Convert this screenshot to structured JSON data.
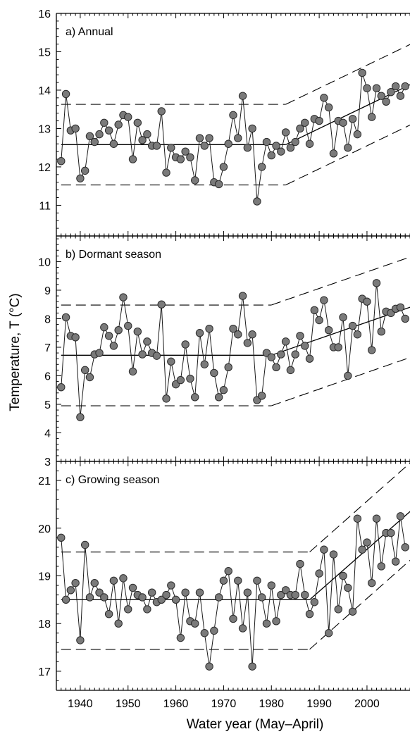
{
  "chart_data": {
    "type": "scatter",
    "xlabel": "Water year (May–April)",
    "ylabel": "Temperature, T (°C)",
    "xlim": [
      1935,
      2009
    ],
    "x_ticks": [
      1940,
      1950,
      1960,
      1970,
      1980,
      1990,
      2000
    ],
    "grid": false,
    "panels": [
      {
        "label": "a) Annual",
        "ylim": [
          10.2,
          16
        ],
        "y_ticks": [
          11,
          12,
          13,
          14,
          15,
          16
        ],
        "x": [
          1936,
          1937,
          1938,
          1939,
          1940,
          1941,
          1942,
          1943,
          1944,
          1945,
          1946,
          1947,
          1948,
          1949,
          1950,
          1951,
          1952,
          1953,
          1954,
          1955,
          1956,
          1957,
          1958,
          1959,
          1960,
          1961,
          1962,
          1963,
          1964,
          1965,
          1966,
          1967,
          1968,
          1969,
          1970,
          1971,
          1972,
          1973,
          1974,
          1975,
          1976,
          1977,
          1978,
          1979,
          1980,
          1981,
          1982,
          1983,
          1984,
          1985,
          1986,
          1987,
          1988,
          1989,
          1990,
          1991,
          1992,
          1993,
          1994,
          1995,
          1996,
          1997,
          1998,
          1999,
          2000,
          2001,
          2002,
          2003,
          2004,
          2005,
          2006,
          2007,
          2008
        ],
        "y": [
          12.15,
          13.9,
          12.95,
          13.0,
          11.7,
          11.9,
          12.8,
          12.65,
          12.85,
          13.15,
          12.95,
          12.6,
          13.1,
          13.35,
          13.3,
          12.2,
          13.15,
          12.7,
          12.85,
          12.55,
          12.55,
          13.45,
          11.85,
          12.5,
          12.25,
          12.2,
          12.4,
          12.25,
          11.65,
          12.75,
          12.55,
          12.75,
          11.6,
          11.55,
          12.0,
          12.6,
          13.35,
          12.75,
          13.85,
          12.5,
          13.0,
          11.1,
          12.0,
          12.65,
          12.3,
          12.55,
          12.4,
          12.9,
          12.5,
          12.65,
          13.0,
          13.15,
          12.6,
          13.25,
          13.2,
          13.8,
          13.55,
          12.35,
          13.2,
          13.15,
          12.5,
          13.25,
          12.85,
          14.45,
          14.05,
          13.3,
          14.05,
          13.85,
          13.7,
          13.95,
          14.1,
          13.85,
          14.1
        ],
        "baseline_mean": 12.58,
        "baseline_band": [
          11.53,
          13.63
        ],
        "trend_start": 1983,
        "trend_from": 12.58,
        "trend_slope": 0.06,
        "band_halfwidth": 1.05
      },
      {
        "label": "b) Dormant season",
        "ylim": [
          3,
          10.9
        ],
        "y_ticks": [
          3,
          4,
          5,
          6,
          7,
          8,
          9,
          10
        ],
        "x": [
          1936,
          1937,
          1938,
          1939,
          1940,
          1941,
          1942,
          1943,
          1944,
          1945,
          1946,
          1947,
          1948,
          1949,
          1950,
          1951,
          1952,
          1953,
          1954,
          1955,
          1956,
          1957,
          1958,
          1959,
          1960,
          1961,
          1962,
          1963,
          1964,
          1965,
          1966,
          1967,
          1968,
          1969,
          1970,
          1971,
          1972,
          1973,
          1974,
          1975,
          1976,
          1977,
          1978,
          1979,
          1980,
          1981,
          1982,
          1983,
          1984,
          1985,
          1986,
          1987,
          1988,
          1989,
          1990,
          1991,
          1992,
          1993,
          1994,
          1995,
          1996,
          1997,
          1998,
          1999,
          2000,
          2001,
          2002,
          2003,
          2004,
          2005,
          2006,
          2007,
          2008
        ],
        "y": [
          5.6,
          8.05,
          7.4,
          7.35,
          4.55,
          6.2,
          5.95,
          6.75,
          6.8,
          7.7,
          7.4,
          7.05,
          7.6,
          8.75,
          7.75,
          6.15,
          7.55,
          6.75,
          7.2,
          6.8,
          6.7,
          8.5,
          5.2,
          6.5,
          5.7,
          5.85,
          7.1,
          5.9,
          5.25,
          7.5,
          6.4,
          7.65,
          6.1,
          5.25,
          5.5,
          6.3,
          7.65,
          7.45,
          8.8,
          7.15,
          7.45,
          5.15,
          5.3,
          6.8,
          6.65,
          6.3,
          6.75,
          7.2,
          6.2,
          6.75,
          7.4,
          7.05,
          6.6,
          8.3,
          7.95,
          8.65,
          7.6,
          7.0,
          7.0,
          8.05,
          6.0,
          7.75,
          7.45,
          8.7,
          8.6,
          6.9,
          9.25,
          7.55,
          8.25,
          8.2,
          8.35,
          8.4,
          8.0
        ],
        "baseline_mean": 6.72,
        "baseline_band": [
          4.95,
          8.48
        ],
        "trend_start": 1980,
        "trend_from": 6.72,
        "trend_slope": 0.058,
        "band_halfwidth": 1.76
      },
      {
        "label": "c) Growing season",
        "ylim": [
          16.6,
          21.4
        ],
        "y_ticks": [
          17,
          18,
          19,
          20,
          21
        ],
        "x": [
          1936,
          1937,
          1938,
          1939,
          1940,
          1941,
          1942,
          1943,
          1944,
          1945,
          1946,
          1947,
          1948,
          1949,
          1950,
          1951,
          1952,
          1953,
          1954,
          1955,
          1956,
          1957,
          1958,
          1959,
          1960,
          1961,
          1962,
          1963,
          1964,
          1965,
          1966,
          1967,
          1968,
          1969,
          1970,
          1971,
          1972,
          1973,
          1974,
          1975,
          1976,
          1977,
          1978,
          1979,
          1980,
          1981,
          1982,
          1983,
          1984,
          1985,
          1986,
          1987,
          1988,
          1989,
          1990,
          1991,
          1992,
          1993,
          1994,
          1995,
          1996,
          1997,
          1998,
          1999,
          2000,
          2001,
          2002,
          2003,
          2004,
          2005,
          2006,
          2007,
          2008
        ],
        "y": [
          19.8,
          18.5,
          18.7,
          18.85,
          17.65,
          19.65,
          18.55,
          18.85,
          18.65,
          18.55,
          18.2,
          18.9,
          18.0,
          18.95,
          18.3,
          18.75,
          18.6,
          18.55,
          18.3,
          18.65,
          18.45,
          18.5,
          18.6,
          18.8,
          18.5,
          17.7,
          18.65,
          18.05,
          18.0,
          18.65,
          17.8,
          17.1,
          17.85,
          18.55,
          18.9,
          19.1,
          18.1,
          18.9,
          17.9,
          18.65,
          17.1,
          18.9,
          18.55,
          18.0,
          18.8,
          18.05,
          18.6,
          18.7,
          18.6,
          18.6,
          19.25,
          18.6,
          18.2,
          18.45,
          19.05,
          19.55,
          17.8,
          19.45,
          18.3,
          19.0,
          18.75,
          18.25,
          20.2,
          19.55,
          19.7,
          18.85,
          20.2,
          19.2,
          19.9,
          19.9,
          19.3,
          20.25,
          19.6
        ],
        "baseline_mean": 18.5,
        "baseline_band": [
          17.46,
          19.5
        ],
        "trend_start": 1988,
        "trend_from": 18.5,
        "trend_slope": 0.088,
        "band_halfwidth": 1.02
      }
    ]
  },
  "colors": {
    "marker_fill": "#7a7a7a",
    "marker_stroke": "#2a2a2a",
    "series_line": "#1a1a1a",
    "axis": "#000000"
  }
}
